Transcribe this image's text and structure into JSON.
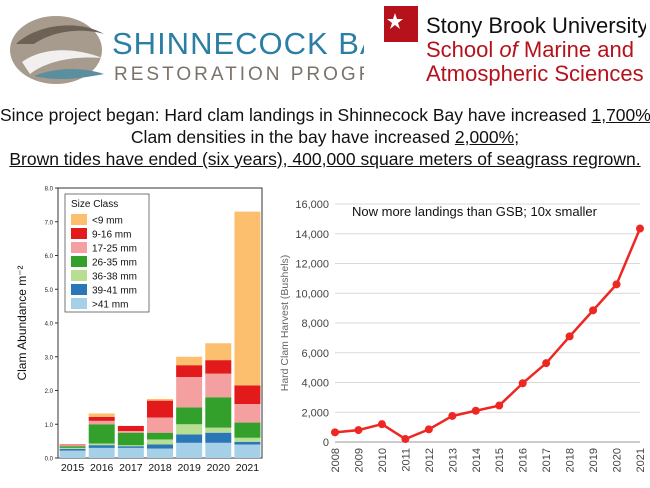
{
  "logos": {
    "left": {
      "name": "SHINNECOCK BAY",
      "subtitle": "RESTORATION PROGRAM"
    },
    "right": {
      "line1": "Stony Brook University",
      "line2_a": "School ",
      "line2_b": "of",
      "line2_c": " Marine and",
      "line3": "Atmospheric Sciences"
    }
  },
  "headline": {
    "line1_a": "Since project began: Hard clam landings in Shinnecock Bay have increased ",
    "line1_b": "1,700%",
    "line1_c": ";",
    "line2_a": "Clam densities in the bay have increased ",
    "line2_b": "2,000%;",
    "line3": "Brown tides have ended (six years), 400,000 square meters of seagrass regrown."
  },
  "chart_data": [
    {
      "type": "bar",
      "stacked": true,
      "categories": [
        "2015",
        "2016",
        "2017",
        "2018",
        "2019",
        "2020",
        "2021"
      ],
      "ylabel": "Clam Abundance m⁻²",
      "ylim": [
        0,
        8.0
      ],
      "yticks": [
        "0.0",
        "1.0",
        "2.0",
        "3.0",
        "4.0",
        "5.0",
        "6.0",
        "7.0",
        "8.0"
      ],
      "legend_title": "Size Class",
      "legend_position": "top-left",
      "series": [
        {
          "name": ">41 mm",
          "color": "#a6d0e8",
          "values": [
            0.22,
            0.3,
            0.3,
            0.28,
            0.45,
            0.45,
            0.4
          ]
        },
        {
          "name": "39-41 mm",
          "color": "#2a77b8",
          "values": [
            0.05,
            0.08,
            0.05,
            0.12,
            0.25,
            0.3,
            0.08
          ]
        },
        {
          "name": "36-38 mm",
          "color": "#b6df93",
          "values": [
            0.03,
            0.05,
            0.03,
            0.15,
            0.3,
            0.15,
            0.12
          ]
        },
        {
          "name": "26-35 mm",
          "color": "#33a02c",
          "values": [
            0.05,
            0.57,
            0.37,
            0.2,
            0.5,
            0.9,
            0.45
          ]
        },
        {
          "name": "17-25 mm",
          "color": "#f4a0a0",
          "values": [
            0.03,
            0.1,
            0.05,
            0.45,
            0.9,
            0.7,
            0.55
          ]
        },
        {
          "name": "9-16 mm",
          "color": "#e31a1c",
          "values": [
            0.02,
            0.12,
            0.15,
            0.5,
            0.35,
            0.4,
            0.55
          ]
        },
        {
          "name": "<9 mm",
          "color": "#fcbf6e",
          "values": [
            0.0,
            0.1,
            0.0,
            0.05,
            0.25,
            0.5,
            5.15
          ]
        }
      ]
    },
    {
      "type": "line",
      "x": [
        "2008",
        "2009",
        "2010",
        "2011",
        "2012",
        "2013",
        "2014",
        "2015",
        "2016",
        "2017",
        "2018",
        "2019",
        "2020",
        "2021"
      ],
      "values": [
        650,
        800,
        1200,
        200,
        850,
        1750,
        2100,
        2450,
        3950,
        5300,
        7100,
        8850,
        10600,
        14350
      ],
      "ylabel": "Hard Clam Harvest (Bushels)",
      "ylim": [
        0,
        16000
      ],
      "yticks": [
        "0",
        "2,000",
        "4,000",
        "6,000",
        "8,000",
        "10,000",
        "12,000",
        "14,000",
        "16,000"
      ],
      "annotation": "Now more landings than GSB; 10x smaller",
      "color": "#ee2722"
    }
  ]
}
